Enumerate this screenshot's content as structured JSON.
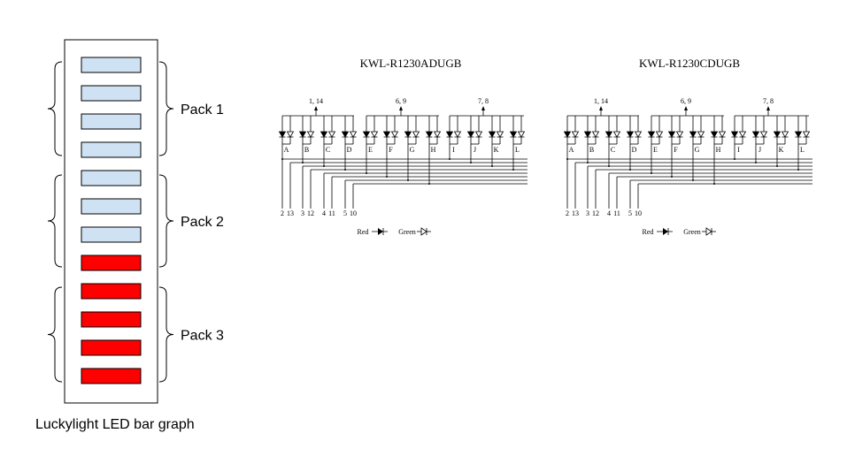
{
  "bar_graph": {
    "caption": "Luckylight LED bar graph",
    "segment_colors": [
      "#cfe2f3",
      "#cfe2f3",
      "#cfe2f3",
      "#cfe2f3",
      "#cfe2f3",
      "#cfe2f3",
      "#cfe2f3",
      "#ff0000",
      "#ff0000",
      "#ff0000",
      "#ff0000",
      "#ff0000"
    ],
    "packs": [
      {
        "label": "Pack 1",
        "segments": 4
      },
      {
        "label": "Pack 2",
        "segments": 4
      },
      {
        "label": "Pack 3",
        "segments": 4
      }
    ]
  },
  "schematics": [
    {
      "title": "KWL-R1230ADUGB",
      "red_led_variant": "outline",
      "common_pins": [
        "1, 14",
        "6, 9",
        "7, 8"
      ],
      "segment_letters": [
        "A",
        "B",
        "C",
        "D",
        "E",
        "F",
        "G",
        "H",
        "I",
        "J",
        "K",
        "L"
      ],
      "pin_pairs": [
        "2",
        "13",
        "3",
        "12",
        "4",
        "11",
        "5",
        "10"
      ],
      "legend": {
        "red": "Red",
        "green": "Green"
      }
    },
    {
      "title": "KWL-R1230CDUGB",
      "red_led_variant": "filled",
      "common_pins": [
        "1, 14",
        "6, 9",
        "7, 8"
      ],
      "segment_letters": [
        "A",
        "B",
        "C",
        "D",
        "E",
        "F",
        "G",
        "H",
        "I",
        "J",
        "K",
        "L"
      ],
      "pin_pairs": [
        "2",
        "13",
        "3",
        "12",
        "4",
        "11",
        "5",
        "10"
      ],
      "legend": {
        "red": "Red",
        "green": "Green"
      }
    }
  ]
}
